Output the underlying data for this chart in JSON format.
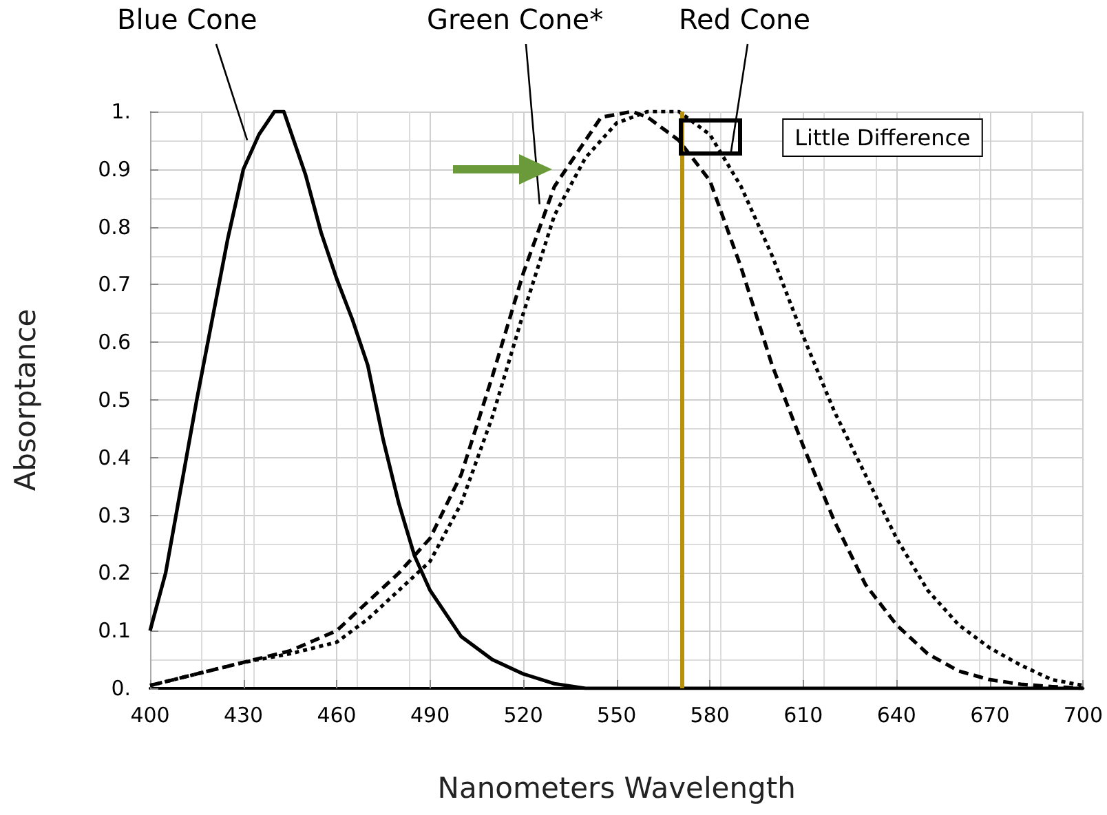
{
  "chart_data": {
    "type": "line",
    "xlabel": "Nanometers Wavelength",
    "ylabel": "Absorptance",
    "xlim": [
      400,
      700
    ],
    "xticks": [
      400,
      430,
      460,
      490,
      520,
      550,
      580,
      610,
      640,
      670,
      700
    ],
    "ylim": [
      0,
      1
    ],
    "yticks": [
      {
        "value": 0,
        "label": "0."
      },
      0.1,
      0.2,
      0.3,
      0.4,
      0.5,
      0.6,
      0.7,
      0.8,
      0.9,
      {
        "value": 1,
        "label": "1."
      }
    ],
    "grid": true,
    "legend": false,
    "marker": "none",
    "series": [
      {
        "name": "Blue Cone",
        "color": "#000000",
        "line_style": "solid",
        "x": [
          400,
          405,
          410,
          415,
          420,
          425,
          430,
          435,
          440,
          443,
          450,
          455,
          460,
          465,
          470,
          475,
          480,
          485,
          490,
          500,
          510,
          520,
          530,
          540,
          560,
          600,
          650,
          700
        ],
        "values": [
          0.1,
          0.2,
          0.35,
          0.5,
          0.64,
          0.78,
          0.9,
          0.96,
          1.0,
          1.0,
          0.89,
          0.79,
          0.71,
          0.64,
          0.56,
          0.43,
          0.32,
          0.23,
          0.17,
          0.09,
          0.05,
          0.025,
          0.008,
          0.0,
          0.0,
          0.0,
          0.0,
          0.0
        ]
      },
      {
        "name": "Green Cone*",
        "color": "#000000",
        "line_style": "dashed",
        "x": [
          400,
          415,
          430,
          445,
          460,
          470,
          480,
          490,
          500,
          510,
          520,
          530,
          540,
          545,
          555,
          560,
          570,
          580,
          590,
          600,
          610,
          620,
          630,
          640,
          650,
          660,
          670,
          680,
          690,
          700
        ],
        "values": [
          0.005,
          0.025,
          0.045,
          0.065,
          0.1,
          0.15,
          0.2,
          0.26,
          0.37,
          0.54,
          0.72,
          0.87,
          0.95,
          0.99,
          1.0,
          0.99,
          0.95,
          0.88,
          0.73,
          0.56,
          0.42,
          0.29,
          0.18,
          0.11,
          0.06,
          0.03,
          0.015,
          0.007,
          0.003,
          0.0
        ]
      },
      {
        "name": "Red Cone",
        "color": "#000000",
        "line_style": "dotted",
        "x": [
          400,
          415,
          430,
          445,
          460,
          470,
          480,
          490,
          500,
          510,
          520,
          530,
          540,
          550,
          560,
          570,
          580,
          590,
          600,
          610,
          620,
          630,
          640,
          650,
          660,
          670,
          680,
          690,
          700
        ],
        "values": [
          0.005,
          0.025,
          0.045,
          0.06,
          0.08,
          0.12,
          0.17,
          0.22,
          0.32,
          0.47,
          0.65,
          0.82,
          0.92,
          0.98,
          1.0,
          1.0,
          0.96,
          0.87,
          0.75,
          0.61,
          0.48,
          0.37,
          0.26,
          0.17,
          0.11,
          0.07,
          0.04,
          0.015,
          0.005
        ]
      }
    ],
    "ref_lines": [
      {
        "axis": "x",
        "value": 571,
        "color": "#b8900a",
        "line_style": "solid"
      }
    ],
    "annotations": [
      "Little Difference"
    ]
  }
}
